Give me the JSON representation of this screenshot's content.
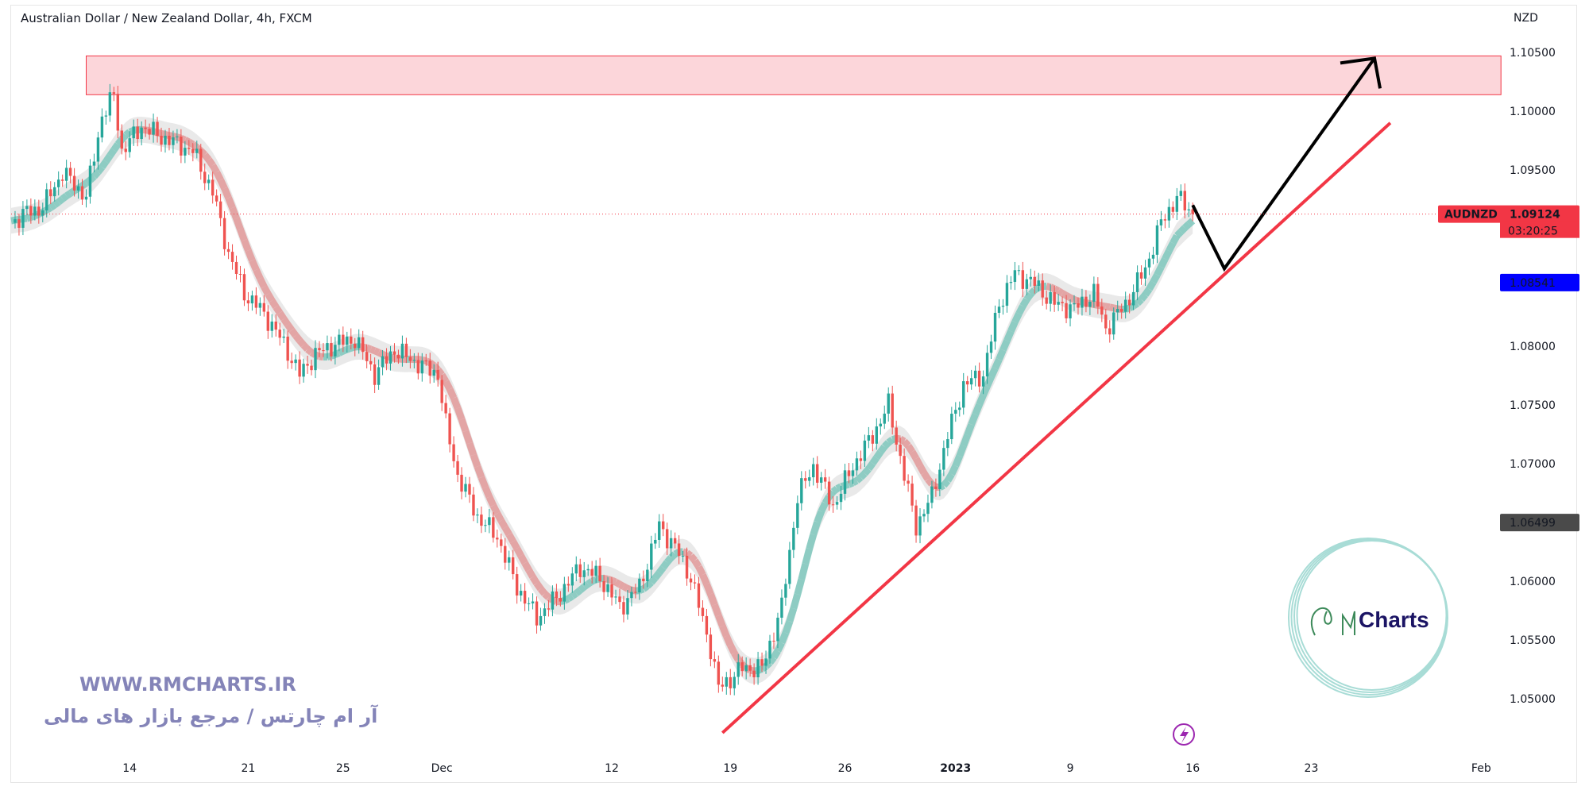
{
  "header": {
    "title": "Australian Dollar / New Zealand Dollar, 4h, FXCM"
  },
  "watermark": {
    "url": "WWW.RMCHARTS.IR",
    "tagline": "آر ام چارتس / مرجع بازار های مالی",
    "logo_text": "Charts"
  },
  "colors": {
    "up": "#26a69a",
    "down": "#ef5350",
    "zone_fill": "#fcd6da",
    "zone_border": "#f23645",
    "trendline": "#f23645",
    "arrow": "#000000",
    "price_label": "#f23645",
    "blue_label": "#0000ff",
    "gray_label": "#4a4a4a",
    "logo_ring": "#a8dcd6",
    "lightning": "#9c27b0"
  },
  "icons": {
    "event": "lightning-icon"
  },
  "chart_data": {
    "type": "candlestick",
    "symbol": "AUDNZD",
    "currency_label": "NZD",
    "ylim": [
      1.0455,
      1.1065
    ],
    "y_ticks": [
      "1.10500",
      "1.10000",
      "1.09500",
      "1.09000",
      "1.08500",
      "1.08000",
      "1.07500",
      "1.07000",
      "1.06500",
      "1.06000",
      "1.05500",
      "1.05000"
    ],
    "x_ticks": [
      {
        "label": "14",
        "bar": 30
      },
      {
        "label": "21",
        "bar": 60
      },
      {
        "label": "25",
        "bar": 84
      },
      {
        "label": "Dec",
        "bar": 109
      },
      {
        "label": "12",
        "bar": 152
      },
      {
        "label": "19",
        "bar": 182
      },
      {
        "label": "26",
        "bar": 211
      },
      {
        "label": "2023",
        "bar": 239
      },
      {
        "label": "9",
        "bar": 268
      },
      {
        "label": "16",
        "bar": 299
      },
      {
        "label": "23",
        "bar": 329
      },
      {
        "label": "Feb",
        "bar": 372
      }
    ],
    "close_path": [
      [
        0,
        1.0905
      ],
      [
        4,
        1.0914
      ],
      [
        8,
        1.0918
      ],
      [
        13,
        1.0948
      ],
      [
        19,
        1.0927
      ],
      [
        23,
        1.0996
      ],
      [
        26,
        1.1013
      ],
      [
        28,
        1.0966
      ],
      [
        33,
        1.0987
      ],
      [
        38,
        1.0978
      ],
      [
        46,
        1.0966
      ],
      [
        51,
        1.0931
      ],
      [
        55,
        1.0879
      ],
      [
        59,
        1.0845
      ],
      [
        64,
        1.0828
      ],
      [
        69,
        1.0802
      ],
      [
        73,
        1.0776
      ],
      [
        77,
        1.0793
      ],
      [
        82,
        1.0802
      ],
      [
        87,
        1.0806
      ],
      [
        92,
        1.0776
      ],
      [
        97,
        1.0797
      ],
      [
        103,
        1.0785
      ],
      [
        108,
        1.0776
      ],
      [
        110,
        1.0733
      ],
      [
        113,
        1.069
      ],
      [
        118,
        1.0655
      ],
      [
        123,
        1.0638
      ],
      [
        128,
        1.0595
      ],
      [
        133,
        1.0569
      ],
      [
        138,
        1.0586
      ],
      [
        144,
        1.0612
      ],
      [
        149,
        1.0603
      ],
      [
        154,
        1.0578
      ],
      [
        159,
        1.0595
      ],
      [
        164,
        1.0647
      ],
      [
        168,
        1.0629
      ],
      [
        172,
        1.0603
      ],
      [
        177,
        1.0543
      ],
      [
        179,
        1.0509
      ],
      [
        182,
        1.0517
      ],
      [
        185,
        1.0526
      ],
      [
        190,
        1.0526
      ],
      [
        195,
        1.0578
      ],
      [
        199,
        1.0672
      ],
      [
        203,
        1.0698
      ],
      [
        208,
        1.0664
      ],
      [
        213,
        1.0698
      ],
      [
        218,
        1.0724
      ],
      [
        222,
        1.075
      ],
      [
        226,
        1.069
      ],
      [
        229,
        1.0647
      ],
      [
        233,
        1.0672
      ],
      [
        237,
        1.0724
      ],
      [
        241,
        1.0767
      ],
      [
        246,
        1.0776
      ],
      [
        250,
        1.0836
      ],
      [
        254,
        1.0862
      ],
      [
        259,
        1.0853
      ],
      [
        264,
        1.0836
      ],
      [
        269,
        1.0832
      ],
      [
        274,
        1.0845
      ],
      [
        277,
        1.0815
      ],
      [
        282,
        1.0836
      ],
      [
        287,
        1.0866
      ],
      [
        291,
        1.0905
      ],
      [
        295,
        1.0927
      ],
      [
        299,
        1.09124
      ]
    ],
    "last_price": "1.09124",
    "countdown": "03:20:25",
    "marker_labels": [
      {
        "price": "1.08541",
        "color": "blue"
      },
      {
        "price": "1.06499",
        "color": "gray"
      }
    ],
    "drawings": {
      "supply_zone": {
        "from_bar": 19,
        "to_bar": 377,
        "top": 1.1047,
        "bottom": 1.1014
      },
      "trendline": [
        [
          180,
          1.0471
        ],
        [
          349,
          1.099
        ]
      ],
      "projection_arrow": [
        [
          299,
          1.092
        ],
        [
          307,
          1.0866
        ],
        [
          345,
          1.1045
        ]
      ]
    }
  }
}
